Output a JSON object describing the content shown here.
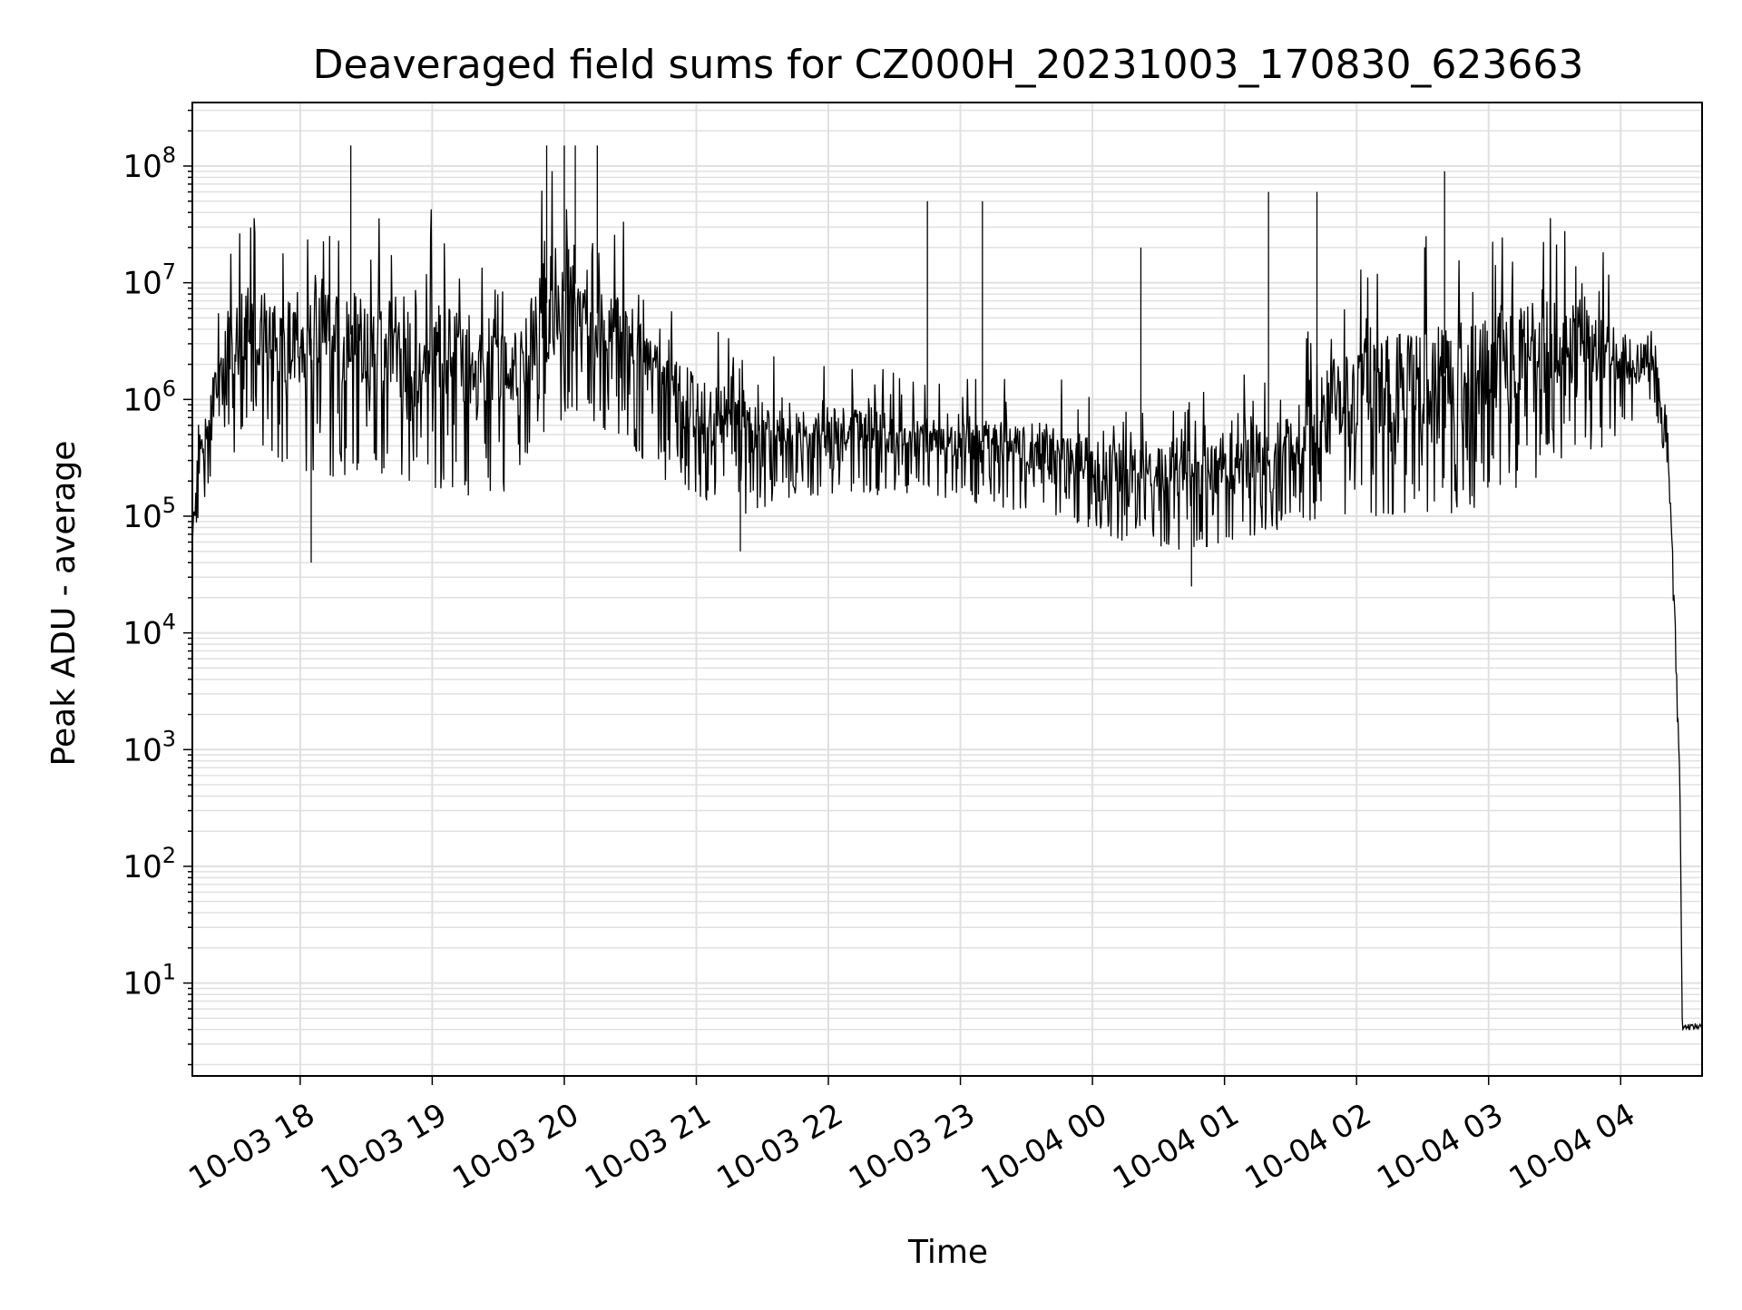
{
  "chart_data": {
    "type": "line",
    "title": "Deaveraged field sums for CZ000H_20231003_170830_623663",
    "xlabel": "Time",
    "ylabel": "Peak ADU - average",
    "yscale": "log",
    "ylim": [
      1.6,
      350000000
    ],
    "xlim": [
      "2023-10-03 17:11",
      "2023-10-04 04:37"
    ],
    "grid": true,
    "line_color": "#000000",
    "grid_color": "#e0e0e0",
    "x_ticks": [
      {
        "t": "2023-10-03 18:00",
        "label": "10-03 18"
      },
      {
        "t": "2023-10-03 19:00",
        "label": "10-03 19"
      },
      {
        "t": "2023-10-03 20:00",
        "label": "10-03 20"
      },
      {
        "t": "2023-10-03 21:00",
        "label": "10-03 21"
      },
      {
        "t": "2023-10-03 22:00",
        "label": "10-03 22"
      },
      {
        "t": "2023-10-03 23:00",
        "label": "10-03 23"
      },
      {
        "t": "2023-10-04 00:00",
        "label": "10-04 00"
      },
      {
        "t": "2023-10-04 01:00",
        "label": "10-04 01"
      },
      {
        "t": "2023-10-04 02:00",
        "label": "10-04 02"
      },
      {
        "t": "2023-10-04 03:00",
        "label": "10-04 03"
      },
      {
        "t": "2023-10-04 04:00",
        "label": "10-04 04"
      }
    ],
    "y_ticks": [
      {
        "value": 10,
        "base": "10",
        "exp": "1"
      },
      {
        "value": 100,
        "base": "10",
        "exp": "2"
      },
      {
        "value": 1000,
        "base": "10",
        "exp": "3"
      },
      {
        "value": 10000,
        "base": "10",
        "exp": "4"
      },
      {
        "value": 100000,
        "base": "10",
        "exp": "5"
      },
      {
        "value": 1000000,
        "base": "10",
        "exp": "6"
      },
      {
        "value": 10000000,
        "base": "10",
        "exp": "7"
      },
      {
        "value": 100000000,
        "base": "10",
        "exp": "8"
      }
    ],
    "series": [
      {
        "envelope": [
          {
            "t": "2023-10-03 17:11",
            "low": 50000,
            "high": 100000
          },
          {
            "t": "2023-10-03 17:15",
            "low": 80000,
            "high": 1500000
          },
          {
            "t": "2023-10-03 17:25",
            "low": 300000,
            "high": 15000000
          },
          {
            "t": "2023-10-03 17:35",
            "low": 400000,
            "high": 40000000
          },
          {
            "t": "2023-10-03 17:50",
            "low": 300000,
            "high": 50000000
          },
          {
            "t": "2023-10-03 18:10",
            "low": 200000,
            "high": 50000000
          },
          {
            "t": "2023-10-03 18:30",
            "low": 250000,
            "high": 60000000
          },
          {
            "t": "2023-10-03 18:50",
            "low": 200000,
            "high": 45000000
          },
          {
            "t": "2023-10-03 19:10",
            "low": 150000,
            "high": 40000000
          },
          {
            "t": "2023-10-03 19:30",
            "low": 150000,
            "high": 25000000
          },
          {
            "t": "2023-10-03 19:40",
            "low": 200000,
            "high": 15000000
          },
          {
            "t": "2023-10-03 19:50",
            "low": 500000,
            "high": 80000000
          },
          {
            "t": "2023-10-03 20:05",
            "low": 800000,
            "high": 120000000
          },
          {
            "t": "2023-10-03 20:15",
            "low": 600000,
            "high": 50000000
          },
          {
            "t": "2023-10-03 20:30",
            "low": 400000,
            "high": 30000000
          },
          {
            "t": "2023-10-03 20:45",
            "low": 200000,
            "high": 10000000
          },
          {
            "t": "2023-10-03 21:00",
            "low": 150000,
            "high": 5000000
          },
          {
            "t": "2023-10-03 21:20",
            "low": 100000,
            "high": 3000000
          },
          {
            "t": "2023-10-03 21:45",
            "low": 150000,
            "high": 2000000
          },
          {
            "t": "2023-10-03 22:15",
            "low": 150000,
            "high": 2000000
          },
          {
            "t": "2023-10-03 22:45",
            "low": 150000,
            "high": 1500000
          },
          {
            "t": "2023-10-03 23:15",
            "low": 120000,
            "high": 1500000
          },
          {
            "t": "2023-10-03 23:45",
            "low": 100000,
            "high": 1500000
          },
          {
            "t": "2023-10-04 00:15",
            "low": 60000,
            "high": 1000000
          },
          {
            "t": "2023-10-04 00:45",
            "low": 50000,
            "high": 1000000
          },
          {
            "t": "2023-10-04 01:00",
            "low": 60000,
            "high": 1500000
          },
          {
            "t": "2023-10-04 01:30",
            "low": 80000,
            "high": 2000000
          },
          {
            "t": "2023-10-04 01:45",
            "low": 100000,
            "high": 8000000
          },
          {
            "t": "2023-10-04 02:15",
            "low": 100000,
            "high": 20000000
          },
          {
            "t": "2023-10-04 02:45",
            "low": 100000,
            "high": 30000000
          },
          {
            "t": "2023-10-04 03:15",
            "low": 150000,
            "high": 40000000
          },
          {
            "t": "2023-10-04 03:45",
            "low": 300000,
            "high": 40000000
          },
          {
            "t": "2023-10-04 04:00",
            "low": 500000,
            "high": 10000000
          },
          {
            "t": "2023-10-04 04:15",
            "low": 1000000,
            "high": 5000000
          },
          {
            "t": "2023-10-04 04:20",
            "low": 300000,
            "high": 1500000
          },
          {
            "t": "2023-10-04 04:23",
            "low": 50000,
            "high": 200000
          },
          {
            "t": "2023-10-04 04:25",
            "low": 5000,
            "high": 20000
          },
          {
            "t": "2023-10-04 04:27",
            "low": 300,
            "high": 500
          },
          {
            "t": "2023-10-04 04:28",
            "low": 4,
            "high": 4.5
          },
          {
            "t": "2023-10-04 04:37",
            "low": 4,
            "high": 4.5
          }
        ],
        "spikes": [
          {
            "t": "2023-10-03 18:23",
            "value": 150000000
          },
          {
            "t": "2023-10-03 19:52",
            "value": 150000000
          },
          {
            "t": "2023-10-03 20:00",
            "value": 150000000
          },
          {
            "t": "2023-10-03 20:05",
            "value": 150000000
          },
          {
            "t": "2023-10-03 20:15",
            "value": 150000000
          },
          {
            "t": "2023-10-03 18:05",
            "value": 40000
          },
          {
            "t": "2023-10-03 21:20",
            "value": 50000
          },
          {
            "t": "2023-10-03 22:45",
            "value": 50000000
          },
          {
            "t": "2023-10-03 23:10",
            "value": 50000000
          },
          {
            "t": "2023-10-04 00:22",
            "value": 20000000
          },
          {
            "t": "2023-10-04 00:45",
            "value": 25000
          },
          {
            "t": "2023-10-04 01:20",
            "value": 60000000
          },
          {
            "t": "2023-10-04 01:42",
            "value": 60000000
          },
          {
            "t": "2023-10-04 02:40",
            "value": 90000000
          }
        ]
      }
    ]
  }
}
